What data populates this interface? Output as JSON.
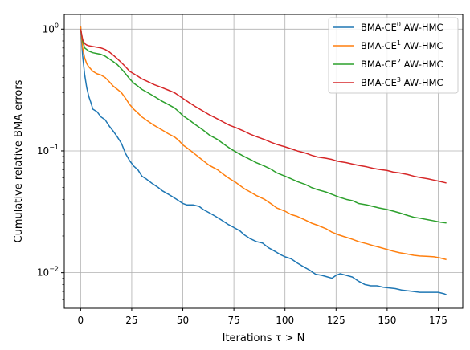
{
  "chart_data": {
    "type": "line",
    "title": "",
    "xlabel": "Iterations τ > N",
    "ylabel": "Cumulative relative BMA errors",
    "xlim": [
      -8,
      187
    ],
    "ylim": [
      0.0051,
      1.32
    ],
    "yscale": "log",
    "grid": true,
    "legend_position": "top-right",
    "xticks": [
      0,
      25,
      50,
      75,
      100,
      125,
      150,
      175
    ],
    "xtick_labels": [
      "0",
      "25",
      "50",
      "75",
      "100",
      "125",
      "150",
      "175"
    ],
    "yticks": [
      0.01,
      0.1,
      1
    ],
    "ytick_labels": [
      {
        "base": "10",
        "exp": "−2"
      },
      {
        "base": "10",
        "exp": "−1"
      },
      {
        "base": "10",
        "exp": "0"
      }
    ],
    "series": [
      {
        "name": {
          "prefix": "BMA-CE",
          "sup": "0",
          "suffix": " AW-HMC"
        },
        "color": "#1f77b4",
        "points": [
          [
            0,
            1.05
          ],
          [
            1,
            0.6
          ],
          [
            2,
            0.42
          ],
          [
            3,
            0.33
          ],
          [
            4,
            0.28
          ],
          [
            5,
            0.25
          ],
          [
            6,
            0.22
          ],
          [
            8,
            0.21
          ],
          [
            10,
            0.19
          ],
          [
            12,
            0.18
          ],
          [
            14,
            0.16
          ],
          [
            16,
            0.145
          ],
          [
            18,
            0.13
          ],
          [
            20,
            0.115
          ],
          [
            22,
            0.095
          ],
          [
            24,
            0.083
          ],
          [
            26,
            0.075
          ],
          [
            28,
            0.07
          ],
          [
            30,
            0.062
          ],
          [
            32,
            0.059
          ],
          [
            35,
            0.054
          ],
          [
            38,
            0.05
          ],
          [
            40,
            0.047
          ],
          [
            43,
            0.044
          ],
          [
            45,
            0.042
          ],
          [
            47,
            0.04
          ],
          [
            50,
            0.037
          ],
          [
            52,
            0.036
          ],
          [
            55,
            0.036
          ],
          [
            58,
            0.035
          ],
          [
            60,
            0.033
          ],
          [
            63,
            0.031
          ],
          [
            66,
            0.029
          ],
          [
            69,
            0.027
          ],
          [
            72,
            0.025
          ],
          [
            75,
            0.0235
          ],
          [
            78,
            0.022
          ],
          [
            80,
            0.0205
          ],
          [
            83,
            0.019
          ],
          [
            86,
            0.018
          ],
          [
            89,
            0.0175
          ],
          [
            92,
            0.016
          ],
          [
            95,
            0.015
          ],
          [
            98,
            0.014
          ],
          [
            100,
            0.0135
          ],
          [
            103,
            0.013
          ],
          [
            106,
            0.012
          ],
          [
            109,
            0.0112
          ],
          [
            112,
            0.0105
          ],
          [
            115,
            0.0097
          ],
          [
            118,
            0.0095
          ],
          [
            121,
            0.0092
          ],
          [
            123,
            0.009
          ],
          [
            125,
            0.0095
          ],
          [
            127,
            0.0098
          ],
          [
            130,
            0.0095
          ],
          [
            133,
            0.0092
          ],
          [
            136,
            0.0085
          ],
          [
            139,
            0.008
          ],
          [
            142,
            0.0078
          ],
          [
            145,
            0.0078
          ],
          [
            148,
            0.0076
          ],
          [
            151,
            0.0075
          ],
          [
            154,
            0.0074
          ],
          [
            157,
            0.0072
          ],
          [
            160,
            0.0071
          ],
          [
            163,
            0.007
          ],
          [
            166,
            0.0069
          ],
          [
            169,
            0.0069
          ],
          [
            172,
            0.0069
          ],
          [
            175,
            0.0069
          ],
          [
            178,
            0.0067
          ],
          [
            179,
            0.0066
          ]
        ]
      },
      {
        "name": {
          "prefix": "BMA-CE",
          "sup": "1",
          "suffix": " AW-HMC"
        },
        "color": "#ff7f0e",
        "points": [
          [
            0,
            1.05
          ],
          [
            1,
            0.7
          ],
          [
            2,
            0.58
          ],
          [
            3,
            0.52
          ],
          [
            4,
            0.49
          ],
          [
            6,
            0.45
          ],
          [
            8,
            0.43
          ],
          [
            10,
            0.42
          ],
          [
            12,
            0.4
          ],
          [
            14,
            0.37
          ],
          [
            16,
            0.34
          ],
          [
            18,
            0.32
          ],
          [
            20,
            0.3
          ],
          [
            22,
            0.27
          ],
          [
            24,
            0.24
          ],
          [
            26,
            0.22
          ],
          [
            28,
            0.205
          ],
          [
            30,
            0.19
          ],
          [
            33,
            0.175
          ],
          [
            36,
            0.162
          ],
          [
            40,
            0.148
          ],
          [
            43,
            0.138
          ],
          [
            46,
            0.13
          ],
          [
            48,
            0.122
          ],
          [
            50,
            0.112
          ],
          [
            53,
            0.103
          ],
          [
            56,
            0.094
          ],
          [
            60,
            0.083
          ],
          [
            63,
            0.076
          ],
          [
            67,
            0.07
          ],
          [
            70,
            0.064
          ],
          [
            73,
            0.059
          ],
          [
            76,
            0.055
          ],
          [
            80,
            0.049
          ],
          [
            83,
            0.046
          ],
          [
            86,
            0.043
          ],
          [
            90,
            0.04
          ],
          [
            93,
            0.037
          ],
          [
            96,
            0.034
          ],
          [
            100,
            0.032
          ],
          [
            103,
            0.03
          ],
          [
            106,
            0.029
          ],
          [
            110,
            0.027
          ],
          [
            113,
            0.0255
          ],
          [
            116,
            0.0245
          ],
          [
            120,
            0.023
          ],
          [
            123,
            0.0215
          ],
          [
            126,
            0.0205
          ],
          [
            130,
            0.0195
          ],
          [
            133,
            0.0188
          ],
          [
            136,
            0.018
          ],
          [
            140,
            0.0173
          ],
          [
            143,
            0.0167
          ],
          [
            146,
            0.0162
          ],
          [
            150,
            0.0155
          ],
          [
            153,
            0.015
          ],
          [
            156,
            0.0146
          ],
          [
            160,
            0.0142
          ],
          [
            163,
            0.0139
          ],
          [
            166,
            0.0137
          ],
          [
            170,
            0.0136
          ],
          [
            173,
            0.0135
          ],
          [
            176,
            0.0132
          ],
          [
            179,
            0.0128
          ]
        ]
      },
      {
        "name": {
          "prefix": "BMA-CE",
          "sup": "2",
          "suffix": " AW-HMC"
        },
        "color": "#2ca02c",
        "points": [
          [
            0,
            1.0
          ],
          [
            1,
            0.8
          ],
          [
            2,
            0.7
          ],
          [
            3,
            0.68
          ],
          [
            4,
            0.66
          ],
          [
            6,
            0.64
          ],
          [
            8,
            0.63
          ],
          [
            10,
            0.62
          ],
          [
            12,
            0.6
          ],
          [
            14,
            0.57
          ],
          [
            16,
            0.54
          ],
          [
            18,
            0.51
          ],
          [
            20,
            0.47
          ],
          [
            22,
            0.43
          ],
          [
            24,
            0.39
          ],
          [
            26,
            0.36
          ],
          [
            28,
            0.34
          ],
          [
            30,
            0.32
          ],
          [
            33,
            0.3
          ],
          [
            36,
            0.28
          ],
          [
            40,
            0.255
          ],
          [
            43,
            0.24
          ],
          [
            46,
            0.225
          ],
          [
            48,
            0.21
          ],
          [
            50,
            0.195
          ],
          [
            53,
            0.18
          ],
          [
            56,
            0.165
          ],
          [
            60,
            0.148
          ],
          [
            63,
            0.135
          ],
          [
            67,
            0.124
          ],
          [
            70,
            0.114
          ],
          [
            73,
            0.105
          ],
          [
            76,
            0.098
          ],
          [
            80,
            0.09
          ],
          [
            83,
            0.085
          ],
          [
            86,
            0.08
          ],
          [
            90,
            0.075
          ],
          [
            93,
            0.071
          ],
          [
            96,
            0.066
          ],
          [
            100,
            0.062
          ],
          [
            103,
            0.059
          ],
          [
            106,
            0.056
          ],
          [
            110,
            0.053
          ],
          [
            113,
            0.05
          ],
          [
            116,
            0.048
          ],
          [
            120,
            0.046
          ],
          [
            123,
            0.044
          ],
          [
            126,
            0.042
          ],
          [
            130,
            0.04
          ],
          [
            133,
            0.039
          ],
          [
            136,
            0.037
          ],
          [
            140,
            0.036
          ],
          [
            143,
            0.035
          ],
          [
            146,
            0.034
          ],
          [
            150,
            0.033
          ],
          [
            153,
            0.032
          ],
          [
            156,
            0.031
          ],
          [
            160,
            0.0295
          ],
          [
            163,
            0.0285
          ],
          [
            166,
            0.028
          ],
          [
            170,
            0.0272
          ],
          [
            173,
            0.0266
          ],
          [
            176,
            0.026
          ],
          [
            179,
            0.0256
          ]
        ]
      },
      {
        "name": {
          "prefix": "BMA-CE",
          "sup": "3",
          "suffix": " AW-HMC"
        },
        "color": "#d62728",
        "points": [
          [
            0,
            1.0
          ],
          [
            1,
            0.82
          ],
          [
            2,
            0.76
          ],
          [
            3,
            0.74
          ],
          [
            4,
            0.73
          ],
          [
            6,
            0.72
          ],
          [
            8,
            0.71
          ],
          [
            10,
            0.7
          ],
          [
            12,
            0.68
          ],
          [
            14,
            0.65
          ],
          [
            16,
            0.61
          ],
          [
            18,
            0.57
          ],
          [
            20,
            0.53
          ],
          [
            22,
            0.49
          ],
          [
            24,
            0.45
          ],
          [
            26,
            0.43
          ],
          [
            28,
            0.41
          ],
          [
            30,
            0.39
          ],
          [
            33,
            0.37
          ],
          [
            36,
            0.35
          ],
          [
            40,
            0.33
          ],
          [
            43,
            0.315
          ],
          [
            46,
            0.3
          ],
          [
            48,
            0.285
          ],
          [
            50,
            0.27
          ],
          [
            53,
            0.25
          ],
          [
            56,
            0.232
          ],
          [
            60,
            0.212
          ],
          [
            63,
            0.198
          ],
          [
            67,
            0.183
          ],
          [
            70,
            0.172
          ],
          [
            73,
            0.162
          ],
          [
            76,
            0.155
          ],
          [
            80,
            0.145
          ],
          [
            83,
            0.137
          ],
          [
            86,
            0.131
          ],
          [
            90,
            0.124
          ],
          [
            93,
            0.118
          ],
          [
            96,
            0.113
          ],
          [
            100,
            0.108
          ],
          [
            103,
            0.104
          ],
          [
            106,
            0.1
          ],
          [
            110,
            0.096
          ],
          [
            113,
            0.092
          ],
          [
            116,
            0.089
          ],
          [
            120,
            0.087
          ],
          [
            123,
            0.085
          ],
          [
            126,
            0.082
          ],
          [
            130,
            0.08
          ],
          [
            133,
            0.078
          ],
          [
            136,
            0.076
          ],
          [
            140,
            0.074
          ],
          [
            143,
            0.072
          ],
          [
            146,
            0.0705
          ],
          [
            150,
            0.069
          ],
          [
            153,
            0.067
          ],
          [
            156,
            0.066
          ],
          [
            160,
            0.064
          ],
          [
            163,
            0.062
          ],
          [
            166,
            0.0605
          ],
          [
            170,
            0.059
          ],
          [
            173,
            0.0575
          ],
          [
            176,
            0.056
          ],
          [
            179,
            0.0545
          ]
        ]
      }
    ]
  }
}
